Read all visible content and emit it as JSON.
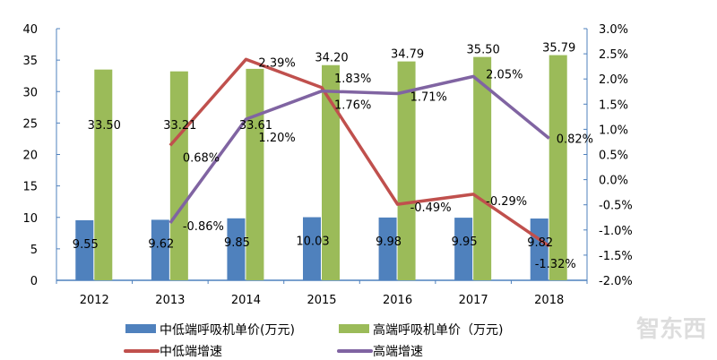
{
  "chart_data": {
    "type": "bar+line",
    "categories": [
      "2012",
      "2013",
      "2014",
      "2015",
      "2016",
      "2017",
      "2018"
    ],
    "left_axis": {
      "ylim": [
        0,
        40
      ],
      "ticks": [
        "0",
        "5",
        "10",
        "15",
        "20",
        "25",
        "30",
        "35",
        "40"
      ]
    },
    "right_axis": {
      "ylim": [
        -2.0,
        3.0
      ],
      "ticks": [
        "-2.0%",
        "-1.5%",
        "-1.0%",
        "-0.5%",
        "0.0%",
        "0.5%",
        "1.0%",
        "1.5%",
        "2.0%",
        "2.5%",
        "3.0%"
      ]
    },
    "bar_series": [
      {
        "name": "中低端呼吸机单价(万元)",
        "color": "#4f81bd",
        "values": [
          9.55,
          9.62,
          9.85,
          10.03,
          9.98,
          9.95,
          9.82
        ],
        "labels": [
          "9.55",
          "9.62",
          "9.85",
          "10.03",
          "9.98",
          "9.95",
          "9.82"
        ]
      },
      {
        "name": "高端呼吸机单价（万元)",
        "color": "#9bbb59",
        "values": [
          33.5,
          33.21,
          33.61,
          34.2,
          34.79,
          35.5,
          35.79
        ],
        "labels": [
          "33.50",
          "33.21",
          "33.61",
          "34.20",
          "34.79",
          "35.50",
          "35.79"
        ]
      }
    ],
    "line_series": [
      {
        "name": "中低端增速",
        "color": "#c0504d",
        "values": [
          null,
          0.68,
          2.39,
          1.83,
          -0.49,
          -0.29,
          -1.32
        ],
        "labels": [
          "",
          "0.68%",
          "2.39%",
          "1.83%",
          "-0.49%",
          "-0.29%",
          "-1.32%"
        ]
      },
      {
        "name": "高端增速",
        "color": "#8064a2",
        "values": [
          null,
          -0.86,
          1.2,
          1.76,
          1.71,
          2.05,
          0.82
        ],
        "labels": [
          "",
          "-0.86%",
          "1.20%",
          "1.76%",
          "1.71%",
          "2.05%",
          "0.82%"
        ]
      }
    ],
    "legend_placement": "bottom",
    "grid": false
  },
  "watermark": "智东西"
}
